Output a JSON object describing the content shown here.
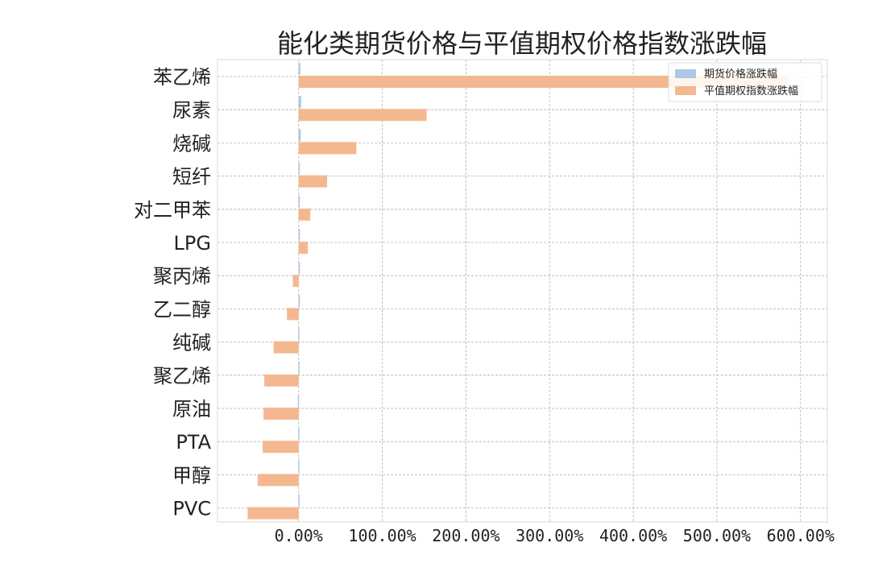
{
  "chart_data": {
    "type": "bar",
    "orientation": "horizontal",
    "title": "能化类期货价格与平值期权价格指数涨跌幅",
    "categories": [
      "苯乙烯",
      "尿素",
      "烧碱",
      "短纤",
      "对二甲苯",
      "LPG",
      "聚丙烯",
      "乙二醇",
      "纯碱",
      "聚乙烯",
      "原油",
      "PTA",
      "甲醇",
      "PVC"
    ],
    "series": [
      {
        "name": "期货价格涨跌幅",
        "color": "#aec7e8",
        "values": [
          2.0,
          3.0,
          2.5,
          0.5,
          0.5,
          1.0,
          0.2,
          0.2,
          -0.5,
          -0.3,
          -1.0,
          -0.5,
          -0.5,
          -0.3
        ]
      },
      {
        "name": "平值期权指数涨跌幅",
        "color": "#f4b890",
        "values": [
          585,
          153,
          69,
          34,
          14,
          11,
          -7,
          -14,
          -30,
          -41,
          -42,
          -43,
          -49,
          -61
        ]
      }
    ],
    "xlim": [
      -97,
      632
    ],
    "xticks": [
      0,
      100,
      200,
      300,
      400,
      500,
      600
    ],
    "xtick_labels": [
      "0.00%",
      "100.00%",
      "200.00%",
      "300.00%",
      "400.00%",
      "500.00%",
      "600.00%"
    ],
    "grid": true,
    "grid_style": "dashed",
    "legend_position": "top-right",
    "xlabel": "",
    "ylabel": ""
  }
}
